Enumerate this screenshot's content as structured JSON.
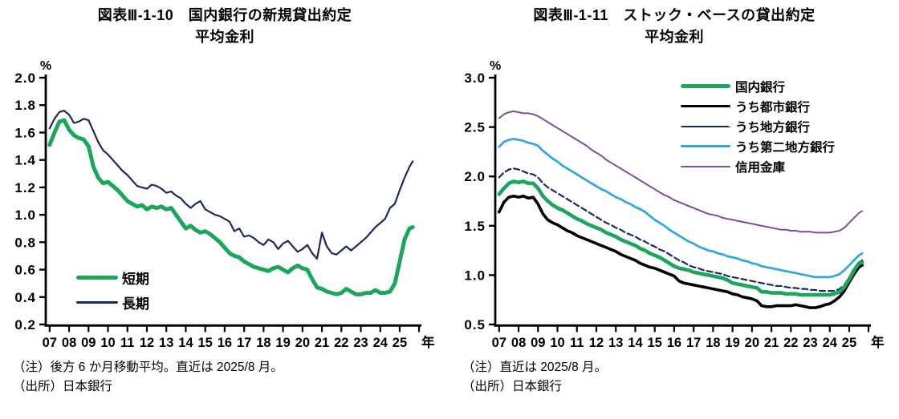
{
  "chart_data": [
    {
      "type": "line",
      "title": "図表Ⅲ-1-10　国内銀行の新規貸出約定平均金利",
      "title_line1": "図表Ⅲ-1-10　国内銀行の新規貸出約定",
      "title_line2": "平均金利",
      "ylabel": "%",
      "xlabel": "",
      "x_suffix": "年",
      "ylim": [
        0.2,
        2.0
      ],
      "yticks": [
        2.0,
        1.8,
        1.6,
        1.4,
        1.2,
        1.0,
        0.8,
        0.6,
        0.4,
        0.2
      ],
      "ytick_labels": [
        "2.0",
        "1.8",
        "1.6",
        "1.4",
        "1.2",
        "1.0",
        "0.8",
        "0.6",
        "0.4",
        "0.2"
      ],
      "xticks": [
        2007,
        2008,
        2009,
        2010,
        2011,
        2012,
        2013,
        2014,
        2015,
        2016,
        2017,
        2018,
        2019,
        2020,
        2021,
        2022,
        2023,
        2024,
        2025
      ],
      "xtick_labels": [
        "07",
        "08",
        "09",
        "10",
        "11",
        "12",
        "13",
        "14",
        "15",
        "16",
        "17",
        "18",
        "19",
        "20",
        "21",
        "22",
        "23",
        "24",
        "25"
      ],
      "grid": false,
      "legend_position": "inside-lower-left",
      "notes": [
        "（注）後方 6 か月移動平均。直近は 2025/8 月。",
        "（出所）日本銀行"
      ],
      "x": [
        2007,
        2007.25,
        2007.5,
        2007.75,
        2008,
        2008.25,
        2008.5,
        2008.75,
        2009,
        2009.25,
        2009.5,
        2009.75,
        2010,
        2010.25,
        2010.5,
        2010.75,
        2011,
        2011.25,
        2011.5,
        2011.75,
        2012,
        2012.25,
        2012.5,
        2012.75,
        2013,
        2013.25,
        2013.5,
        2013.75,
        2014,
        2014.25,
        2014.5,
        2014.75,
        2015,
        2015.25,
        2015.5,
        2015.75,
        2016,
        2016.25,
        2016.5,
        2016.75,
        2017,
        2017.25,
        2017.5,
        2017.75,
        2018,
        2018.25,
        2018.5,
        2018.75,
        2019,
        2019.25,
        2019.5,
        2019.75,
        2020,
        2020.25,
        2020.5,
        2020.75,
        2021,
        2021.25,
        2021.5,
        2021.75,
        2022,
        2022.25,
        2022.5,
        2022.75,
        2023,
        2023.25,
        2023.5,
        2023.75,
        2024,
        2024.25,
        2024.5,
        2024.75,
        2025,
        2025.25,
        2025.5,
        2025.67
      ],
      "series": [
        {
          "id": "long-term",
          "name": "長期",
          "color": "#1a2a60",
          "width": 2.2,
          "dash": "",
          "values": [
            1.63,
            1.7,
            1.75,
            1.76,
            1.73,
            1.67,
            1.68,
            1.7,
            1.69,
            1.61,
            1.53,
            1.47,
            1.44,
            1.4,
            1.36,
            1.32,
            1.29,
            1.25,
            1.21,
            1.2,
            1.19,
            1.22,
            1.21,
            1.19,
            1.16,
            1.17,
            1.14,
            1.12,
            1.08,
            1.05,
            1.08,
            1.1,
            1.04,
            1.02,
            1.0,
            0.99,
            0.97,
            0.95,
            0.88,
            0.9,
            0.84,
            0.85,
            0.83,
            0.8,
            0.78,
            0.82,
            0.8,
            0.75,
            0.79,
            0.81,
            0.77,
            0.73,
            0.75,
            0.78,
            0.72,
            0.68,
            0.87,
            0.77,
            0.72,
            0.71,
            0.74,
            0.77,
            0.74,
            0.77,
            0.8,
            0.83,
            0.87,
            0.91,
            0.94,
            0.97,
            1.05,
            1.08,
            1.18,
            1.27,
            1.35,
            1.39
          ]
        },
        {
          "id": "short-term",
          "name": "短期",
          "color": "#1ca65b",
          "width": 5,
          "dash": "",
          "values": [
            1.51,
            1.6,
            1.68,
            1.69,
            1.62,
            1.58,
            1.56,
            1.55,
            1.5,
            1.35,
            1.27,
            1.23,
            1.24,
            1.21,
            1.18,
            1.14,
            1.1,
            1.08,
            1.06,
            1.07,
            1.04,
            1.06,
            1.05,
            1.06,
            1.04,
            1.05,
            1.0,
            0.95,
            0.9,
            0.92,
            0.89,
            0.87,
            0.88,
            0.86,
            0.83,
            0.8,
            0.76,
            0.72,
            0.7,
            0.69,
            0.66,
            0.64,
            0.62,
            0.61,
            0.6,
            0.59,
            0.61,
            0.62,
            0.6,
            0.58,
            0.61,
            0.63,
            0.61,
            0.6,
            0.53,
            0.47,
            0.46,
            0.44,
            0.43,
            0.42,
            0.43,
            0.46,
            0.44,
            0.42,
            0.42,
            0.43,
            0.43,
            0.45,
            0.43,
            0.43,
            0.44,
            0.5,
            0.66,
            0.82,
            0.9,
            0.91
          ]
        }
      ],
      "legend_order": [
        "short-term",
        "long-term"
      ]
    },
    {
      "type": "line",
      "title": "図表Ⅲ-1-11　ストック・ベースの貸出約定平均金利",
      "title_line1": "図表Ⅲ-1-11　ストック・ベースの貸出約定",
      "title_line2": "平均金利",
      "ylabel": "%",
      "xlabel": "",
      "x_suffix": "年",
      "ylim": [
        0.5,
        3.0
      ],
      "yticks": [
        3.0,
        2.5,
        2.0,
        1.5,
        1.0,
        0.5
      ],
      "ytick_labels": [
        "3.0",
        "2.5",
        "2.0",
        "1.5",
        "1.0",
        "0.5"
      ],
      "xticks": [
        2007,
        2008,
        2009,
        2010,
        2011,
        2012,
        2013,
        2014,
        2015,
        2016,
        2017,
        2018,
        2019,
        2020,
        2021,
        2022,
        2023,
        2024,
        2025
      ],
      "xtick_labels": [
        "07",
        "08",
        "09",
        "10",
        "11",
        "12",
        "13",
        "14",
        "15",
        "16",
        "17",
        "18",
        "19",
        "20",
        "21",
        "22",
        "23",
        "24",
        "25"
      ],
      "grid": false,
      "legend_position": "top-right",
      "notes": [
        "（注）直近は 2025/8 月。",
        "（出所）日本銀行"
      ],
      "x": [
        2007,
        2007.25,
        2007.5,
        2007.75,
        2008,
        2008.25,
        2008.5,
        2008.75,
        2009,
        2009.25,
        2009.5,
        2009.75,
        2010,
        2010.25,
        2010.5,
        2010.75,
        2011,
        2011.25,
        2011.5,
        2011.75,
        2012,
        2012.25,
        2012.5,
        2012.75,
        2013,
        2013.25,
        2013.5,
        2013.75,
        2014,
        2014.25,
        2014.5,
        2014.75,
        2015,
        2015.25,
        2015.5,
        2015.75,
        2016,
        2016.25,
        2016.5,
        2016.75,
        2017,
        2017.25,
        2017.5,
        2017.75,
        2018,
        2018.25,
        2018.5,
        2018.75,
        2019,
        2019.25,
        2019.5,
        2019.75,
        2020,
        2020.25,
        2020.5,
        2020.75,
        2021,
        2021.25,
        2021.5,
        2021.75,
        2022,
        2022.25,
        2022.5,
        2022.75,
        2023,
        2023.25,
        2023.5,
        2023.75,
        2024,
        2024.25,
        2024.5,
        2024.75,
        2025,
        2025.25,
        2025.5,
        2025.67
      ],
      "series": [
        {
          "id": "shinkin-banks",
          "name": "信用金庫",
          "color": "#7a4e9b",
          "width": 2,
          "dash": "",
          "values": [
            2.59,
            2.63,
            2.65,
            2.66,
            2.65,
            2.64,
            2.64,
            2.63,
            2.61,
            2.58,
            2.55,
            2.52,
            2.49,
            2.46,
            2.43,
            2.4,
            2.37,
            2.34,
            2.31,
            2.27,
            2.24,
            2.21,
            2.17,
            2.14,
            2.11,
            2.08,
            2.05,
            2.02,
            1.99,
            1.96,
            1.93,
            1.9,
            1.87,
            1.84,
            1.81,
            1.79,
            1.76,
            1.74,
            1.72,
            1.7,
            1.68,
            1.66,
            1.64,
            1.62,
            1.61,
            1.6,
            1.58,
            1.57,
            1.56,
            1.55,
            1.54,
            1.53,
            1.52,
            1.51,
            1.5,
            1.49,
            1.48,
            1.47,
            1.46,
            1.46,
            1.45,
            1.45,
            1.44,
            1.44,
            1.44,
            1.43,
            1.43,
            1.43,
            1.43,
            1.44,
            1.45,
            1.48,
            1.53,
            1.58,
            1.63,
            1.65
          ]
        },
        {
          "id": "regional-banks",
          "name": "うち地方銀行",
          "color": "#1a2a60",
          "width": 2.2,
          "dash": "7 4",
          "values": [
            1.99,
            2.04,
            2.07,
            2.08,
            2.07,
            2.05,
            2.03,
            2.02,
            1.99,
            1.93,
            1.89,
            1.86,
            1.83,
            1.8,
            1.77,
            1.74,
            1.71,
            1.68,
            1.65,
            1.62,
            1.59,
            1.56,
            1.53,
            1.51,
            1.48,
            1.46,
            1.43,
            1.41,
            1.39,
            1.36,
            1.34,
            1.31,
            1.29,
            1.26,
            1.24,
            1.21,
            1.18,
            1.15,
            1.13,
            1.1,
            1.08,
            1.07,
            1.05,
            1.04,
            1.03,
            1.02,
            1.01,
            0.99,
            0.98,
            0.97,
            0.96,
            0.95,
            0.94,
            0.93,
            0.92,
            0.91,
            0.9,
            0.89,
            0.89,
            0.88,
            0.87,
            0.87,
            0.86,
            0.86,
            0.85,
            0.85,
            0.84,
            0.84,
            0.84,
            0.84,
            0.86,
            0.9,
            0.98,
            1.06,
            1.13,
            1.15
          ]
        },
        {
          "id": "city-banks",
          "name": "うち都市銀行",
          "color": "#000000",
          "width": 3.6,
          "dash": "",
          "values": [
            1.64,
            1.74,
            1.79,
            1.8,
            1.79,
            1.8,
            1.78,
            1.79,
            1.72,
            1.62,
            1.56,
            1.53,
            1.51,
            1.48,
            1.45,
            1.43,
            1.4,
            1.38,
            1.36,
            1.34,
            1.32,
            1.3,
            1.28,
            1.26,
            1.24,
            1.21,
            1.19,
            1.17,
            1.15,
            1.12,
            1.1,
            1.08,
            1.07,
            1.05,
            1.03,
            1.01,
            0.99,
            0.94,
            0.92,
            0.91,
            0.9,
            0.89,
            0.88,
            0.87,
            0.86,
            0.85,
            0.84,
            0.83,
            0.81,
            0.8,
            0.78,
            0.77,
            0.76,
            0.74,
            0.69,
            0.68,
            0.68,
            0.69,
            0.69,
            0.69,
            0.69,
            0.7,
            0.69,
            0.68,
            0.67,
            0.67,
            0.68,
            0.7,
            0.71,
            0.74,
            0.78,
            0.84,
            0.93,
            1.01,
            1.08,
            1.1
          ]
        },
        {
          "id": "domestic-banks",
          "name": "国内銀行",
          "color": "#1ca65b",
          "width": 4.6,
          "dash": "",
          "values": [
            1.82,
            1.88,
            1.93,
            1.95,
            1.94,
            1.95,
            1.93,
            1.93,
            1.88,
            1.8,
            1.75,
            1.71,
            1.68,
            1.66,
            1.63,
            1.6,
            1.57,
            1.55,
            1.52,
            1.5,
            1.48,
            1.46,
            1.43,
            1.41,
            1.39,
            1.36,
            1.34,
            1.32,
            1.3,
            1.27,
            1.25,
            1.22,
            1.2,
            1.18,
            1.15,
            1.12,
            1.09,
            1.07,
            1.06,
            1.05,
            1.03,
            1.02,
            1.01,
            1.0,
            0.99,
            0.98,
            0.97,
            0.95,
            0.92,
            0.91,
            0.9,
            0.89,
            0.88,
            0.87,
            0.83,
            0.83,
            0.82,
            0.82,
            0.82,
            0.81,
            0.81,
            0.81,
            0.8,
            0.8,
            0.8,
            0.8,
            0.8,
            0.8,
            0.8,
            0.81,
            0.83,
            0.88,
            0.96,
            1.05,
            1.12,
            1.13
          ]
        },
        {
          "id": "second-tier-regional-banks",
          "name": "うち第二地方銀行",
          "color": "#34a8dc",
          "width": 2.8,
          "dash": "",
          "values": [
            2.3,
            2.35,
            2.37,
            2.38,
            2.37,
            2.36,
            2.34,
            2.33,
            2.31,
            2.26,
            2.22,
            2.18,
            2.15,
            2.11,
            2.08,
            2.05,
            2.02,
            1.99,
            1.96,
            1.93,
            1.9,
            1.87,
            1.85,
            1.82,
            1.79,
            1.77,
            1.74,
            1.72,
            1.69,
            1.67,
            1.64,
            1.6,
            1.56,
            1.53,
            1.5,
            1.46,
            1.43,
            1.4,
            1.37,
            1.34,
            1.32,
            1.29,
            1.27,
            1.25,
            1.24,
            1.22,
            1.21,
            1.19,
            1.18,
            1.17,
            1.15,
            1.14,
            1.12,
            1.11,
            1.09,
            1.08,
            1.07,
            1.06,
            1.05,
            1.04,
            1.03,
            1.02,
            1.01,
            1.0,
            0.99,
            0.98,
            0.98,
            0.98,
            0.98,
            0.99,
            1.01,
            1.05,
            1.1,
            1.15,
            1.2,
            1.22
          ]
        }
      ],
      "legend_order": [
        "domestic-banks",
        "city-banks",
        "regional-banks",
        "second-tier-regional-banks",
        "shinkin-banks"
      ]
    }
  ]
}
